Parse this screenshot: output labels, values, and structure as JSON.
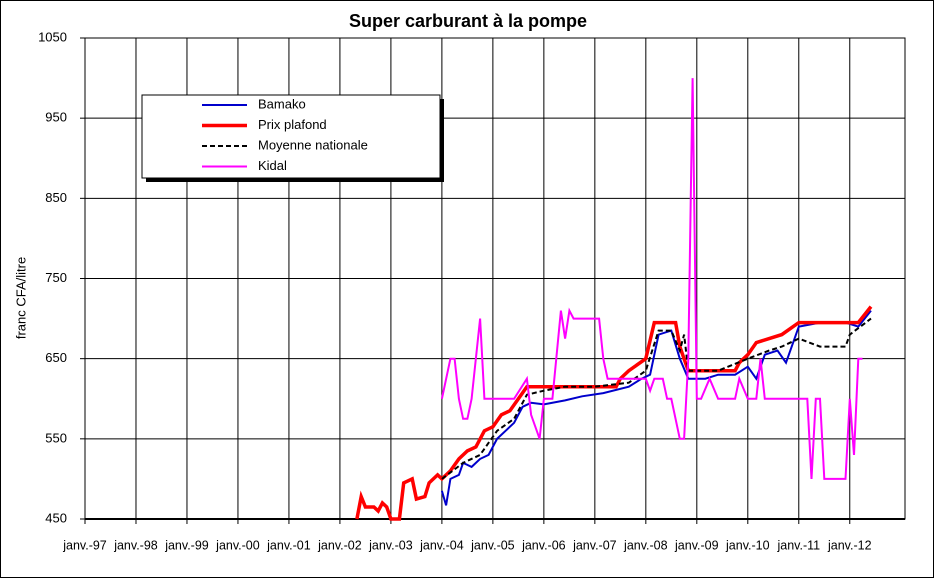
{
  "chart_data": {
    "type": "line",
    "title": "Super carburant à la pompe",
    "y_label": "franc CFA/litre",
    "ylim": [
      450,
      1050
    ],
    "yticks": [
      450,
      550,
      650,
      750,
      850,
      950,
      1050
    ],
    "xlim": [
      "1997-01",
      "2013-02"
    ],
    "xticks": [
      {
        "value": "1997-01",
        "label": "janv.-97"
      },
      {
        "value": "1998-01",
        "label": "janv.-98"
      },
      {
        "value": "1999-01",
        "label": "janv.-99"
      },
      {
        "value": "2000-01",
        "label": "janv.-00"
      },
      {
        "value": "2001-01",
        "label": "janv.-01"
      },
      {
        "value": "2002-01",
        "label": "janv.-02"
      },
      {
        "value": "2003-01",
        "label": "janv.-03"
      },
      {
        "value": "2004-01",
        "label": "janv.-04"
      },
      {
        "value": "2005-01",
        "label": "janv.-05"
      },
      {
        "value": "2006-01",
        "label": "janv.-06"
      },
      {
        "value": "2007-01",
        "label": "janv.-07"
      },
      {
        "value": "2008-01",
        "label": "janv.-08"
      },
      {
        "value": "2009-01",
        "label": "janv.-09"
      },
      {
        "value": "2010-01",
        "label": "janv.-10"
      },
      {
        "value": "2011-01",
        "label": "janv.-11"
      },
      {
        "value": "2012-01",
        "label": "janv.-12"
      }
    ],
    "grid": true,
    "legend": "upper-left",
    "series": [
      {
        "name": "Bamako",
        "color": "#0000cc",
        "width": 2,
        "x": [
          "2004-01",
          "2004-02",
          "2004-03",
          "2004-05",
          "2004-06",
          "2004-08",
          "2004-10",
          "2004-12",
          "2005-02",
          "2005-04",
          "2005-06",
          "2005-08",
          "2005-10",
          "2006-01",
          "2006-06",
          "2006-10",
          "2007-03",
          "2007-09",
          "2007-12",
          "2008-02",
          "2008-04",
          "2008-07",
          "2008-09",
          "2008-11",
          "2009-03",
          "2009-06",
          "2009-10",
          "2010-01",
          "2010-03",
          "2010-05",
          "2010-08",
          "2010-10",
          "2011-01",
          "2011-06",
          "2011-12",
          "2012-03",
          "2012-06"
        ],
        "values": [
          485,
          467,
          500,
          505,
          520,
          515,
          525,
          530,
          550,
          560,
          570,
          590,
          595,
          593,
          598,
          603,
          607,
          615,
          625,
          630,
          680,
          685,
          650,
          625,
          625,
          630,
          630,
          640,
          625,
          655,
          660,
          645,
          690,
          695,
          695,
          690,
          710
        ]
      },
      {
        "name": "Prix plafond",
        "color": "#ff0000",
        "width": 3.5,
        "x": [
          "2002-05",
          "2002-06",
          "2002-07",
          "2002-09",
          "2002-10",
          "2002-11",
          "2002-12",
          "2003-01",
          "2003-03",
          "2003-04",
          "2003-06",
          "2003-07",
          "2003-09",
          "2003-10",
          "2003-12",
          "2004-01",
          "2004-03",
          "2004-05",
          "2004-07",
          "2004-09",
          "2004-11",
          "2005-01",
          "2005-03",
          "2005-05",
          "2005-07",
          "2005-09",
          "2007-06",
          "2007-07",
          "2007-09",
          "2008-01",
          "2008-03",
          "2008-08",
          "2008-09",
          "2008-11",
          "2009-10",
          "2009-11",
          "2010-01",
          "2010-03",
          "2010-09",
          "2011-01",
          "2012-03",
          "2012-06"
        ],
        "values": [
          450,
          478,
          465,
          465,
          460,
          470,
          465,
          450,
          450,
          495,
          500,
          475,
          478,
          495,
          505,
          500,
          510,
          525,
          535,
          540,
          560,
          565,
          580,
          585,
          600,
          615,
          615,
          625,
          635,
          650,
          695,
          695,
          665,
          635,
          635,
          645,
          655,
          670,
          680,
          695,
          695,
          715
        ]
      },
      {
        "name": "Moyenne nationale",
        "color": "#000000",
        "width": 2,
        "dash": true,
        "x": [
          "2004-01",
          "2004-06",
          "2004-10",
          "2005-02",
          "2005-06",
          "2005-09",
          "2006-01",
          "2006-06",
          "2007-01",
          "2007-09",
          "2008-01",
          "2008-04",
          "2008-07",
          "2008-09",
          "2008-10",
          "2008-11",
          "2009-06",
          "2010-01",
          "2010-06",
          "2010-09",
          "2011-01",
          "2011-06",
          "2011-12",
          "2012-01",
          "2012-06"
        ],
        "values": [
          500,
          520,
          530,
          560,
          575,
          605,
          610,
          615,
          615,
          620,
          635,
          685,
          685,
          660,
          680,
          635,
          635,
          650,
          660,
          665,
          675,
          665,
          665,
          680,
          700
        ]
      },
      {
        "name": "Kidal",
        "color": "#ff00ff",
        "width": 2,
        "x": [
          "2004-01",
          "2004-03",
          "2004-04",
          "2004-05",
          "2004-06",
          "2004-07",
          "2004-08",
          "2004-10",
          "2004-11",
          "2005-01",
          "2005-06",
          "2005-09",
          "2005-10",
          "2005-12",
          "2006-01",
          "2006-03",
          "2006-05",
          "2006-06",
          "2006-07",
          "2006-08",
          "2007-02",
          "2007-03",
          "2007-04",
          "2007-06",
          "2008-01",
          "2008-02",
          "2008-03",
          "2008-05",
          "2008-06",
          "2008-07",
          "2008-09",
          "2008-10",
          "2008-11",
          "2008-12",
          "2009-01",
          "2009-02",
          "2009-04",
          "2009-06",
          "2009-10",
          "2009-11",
          "2010-01",
          "2010-03",
          "2010-04",
          "2010-05",
          "2010-07",
          "2011-03",
          "2011-04",
          "2011-05",
          "2011-06",
          "2011-07",
          "2011-12",
          "2012-01",
          "2012-02",
          "2012-03",
          "2012-04"
        ],
        "values": [
          600,
          650,
          650,
          600,
          575,
          575,
          600,
          700,
          600,
          600,
          600,
          625,
          580,
          550,
          600,
          600,
          710,
          675,
          710,
          700,
          700,
          650,
          625,
          625,
          625,
          610,
          625,
          625,
          600,
          600,
          550,
          550,
          650,
          1000,
          600,
          600,
          625,
          600,
          600,
          625,
          600,
          600,
          650,
          600,
          600,
          600,
          500,
          600,
          600,
          500,
          500,
          600,
          530,
          650,
          650
        ]
      }
    ]
  }
}
